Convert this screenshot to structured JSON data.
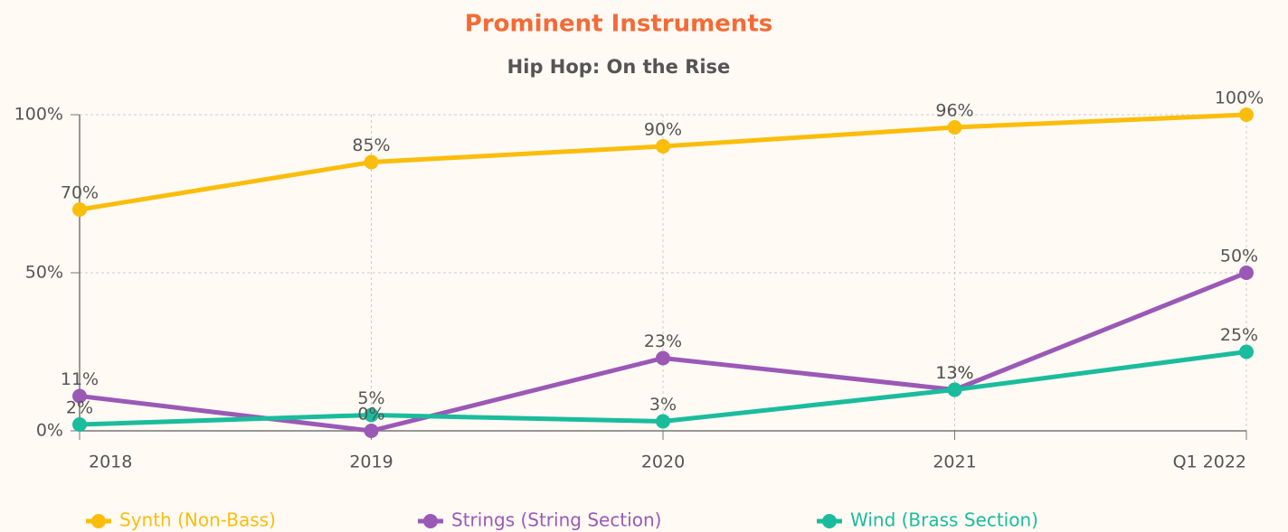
{
  "chart_data": {
    "type": "line",
    "title": "Prominent Instruments",
    "subtitle": "Hip Hop: On the Rise",
    "categories": [
      "2018",
      "2019",
      "2020",
      "2021",
      "Q1 2022"
    ],
    "series": [
      {
        "name": "Synth (Non-Bass)",
        "color": "#fbbd0b",
        "values": [
          70,
          85,
          90,
          96,
          100
        ],
        "value_labels": [
          "70%",
          "85%",
          "90%",
          "96%",
          "100%"
        ]
      },
      {
        "name": "Strings (String Section)",
        "color": "#9b59b6",
        "values": [
          11,
          0,
          23,
          13,
          50
        ],
        "value_labels": [
          "11%",
          "0%",
          "23%",
          "13%",
          "50%"
        ]
      },
      {
        "name": "Wind (Brass Section)",
        "color": "#1abc9c",
        "values": [
          2,
          5,
          3,
          13,
          25
        ],
        "value_labels": [
          "2%",
          "5%",
          "3%",
          "13%",
          "25%"
        ]
      }
    ],
    "ylim": [
      0,
      100
    ],
    "yticks": [
      {
        "value": 0,
        "label": "0%"
      },
      {
        "value": 50,
        "label": "50%"
      },
      {
        "value": 100,
        "label": "100%"
      }
    ],
    "grid": true,
    "legend": "bottom"
  }
}
